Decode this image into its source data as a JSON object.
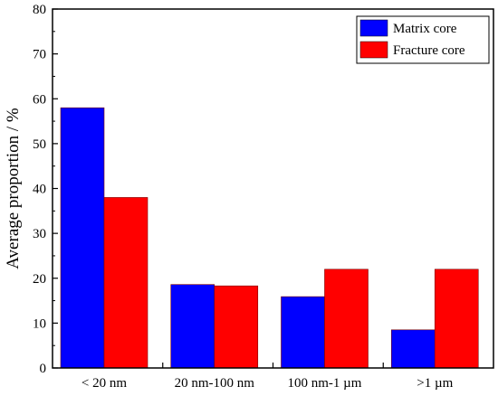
{
  "chart_data": {
    "type": "bar",
    "xlabel": "",
    "ylabel": "Average proportion / %",
    "ylim": [
      0,
      80
    ],
    "yticks": [
      0,
      10,
      20,
      30,
      40,
      50,
      60,
      70,
      80
    ],
    "grid": false,
    "legend_position": "top-right",
    "categories": [
      "< 20 nm",
      "20 nm-100 nm",
      "100 nm-1 µm",
      ">1 µm"
    ],
    "series": [
      {
        "name": "Matrix core",
        "color": "#0000ff",
        "values": [
          58.0,
          18.6,
          15.9,
          8.5
        ]
      },
      {
        "name": "Fracture core",
        "color": "#ff0000",
        "values": [
          38.0,
          18.3,
          22.0,
          22.0
        ]
      }
    ]
  }
}
